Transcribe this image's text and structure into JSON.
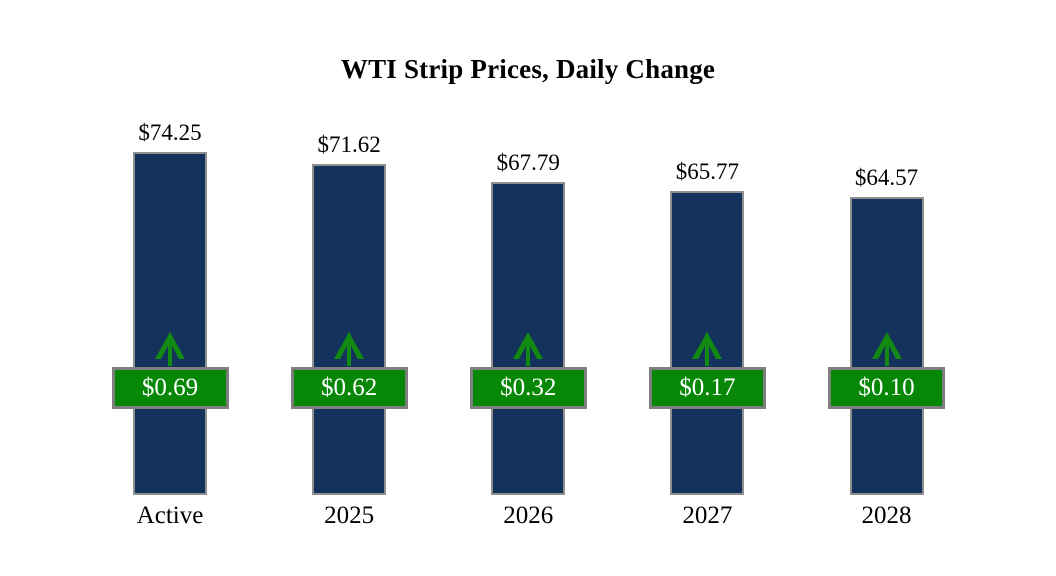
{
  "title": "WTI Strip Prices, Daily Change",
  "chart_data": {
    "type": "bar",
    "title": "WTI Strip Prices, Daily Change",
    "categories": [
      "Active",
      "2025",
      "2026",
      "2027",
      "2028"
    ],
    "series": [
      {
        "name": "WTI Strip Price",
        "values": [
          74.25,
          71.62,
          67.79,
          65.77,
          64.57
        ]
      },
      {
        "name": "Daily Change",
        "values": [
          0.69,
          0.62,
          0.32,
          0.17,
          0.1
        ]
      }
    ],
    "price_labels": [
      "$74.25",
      "$71.62",
      "$67.79",
      "$65.77",
      "$64.57"
    ],
    "change_labels": [
      "$0.69",
      "$0.62",
      "$0.32",
      "$0.17",
      "$0.10"
    ],
    "xlabel": "",
    "ylabel": "",
    "ylim": [
      0,
      74.25
    ],
    "grid": false,
    "legend": "none",
    "annotations": "green up-arrow above each daily-change badge",
    "colors": {
      "bar_fill": "#13335c",
      "bar_border": "#8f8f8f",
      "badge_fill": "#068806",
      "badge_border": "#7f7f7f",
      "arrow": "#128a12",
      "label_text": "#000000",
      "badge_text": "#ffffff",
      "background": "#ffffff"
    }
  }
}
